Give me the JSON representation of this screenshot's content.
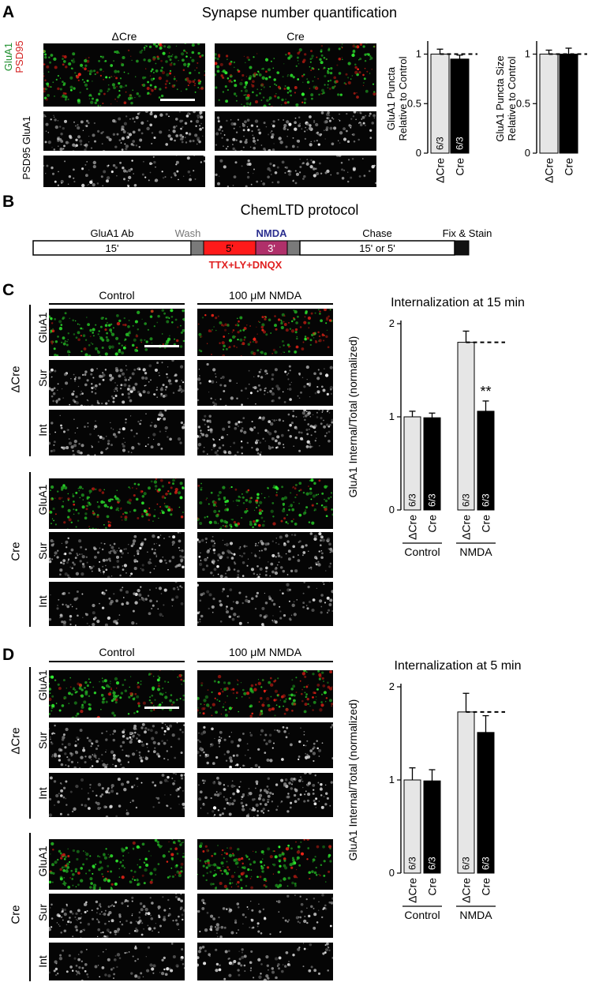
{
  "panel_letters": [
    "A",
    "B",
    "C",
    "D"
  ],
  "panelA": {
    "title": "Synapse number quantification",
    "col_labels": [
      "ΔCre",
      "Cre"
    ],
    "row_labels": [
      "GluA1",
      "PSD95",
      "GluA1",
      "PSD95"
    ],
    "row_colors": [
      "#1e8f2e",
      "#d42020"
    ]
  },
  "panelB": {
    "title": "ChemLTD protocol",
    "segments": [
      {
        "label": "GluA1 Ab",
        "time": "15'",
        "color": "#ffffff"
      },
      {
        "label": "Wash",
        "time": "",
        "color": "#7a7a7a"
      },
      {
        "label": "",
        "time": "5'",
        "color": "#ff1a1a"
      },
      {
        "label": "NMDA",
        "time": "3'",
        "color": "#c0306a"
      },
      {
        "label": "",
        "time": "",
        "color": "#7a7a7a"
      },
      {
        "label": "Chase",
        "time": "15' or 5'",
        "color": "#ffffff"
      },
      {
        "label": "Fix & Stain",
        "time": "",
        "color": "#111111"
      }
    ],
    "drug_label": "TTX+LY+DNQX",
    "nmda_color": "#2b2f8f",
    "drug_color": "#e02020",
    "wash_color": "#777777"
  },
  "panelC": {
    "col_labels": [
      "Control",
      "100 μM NMDA"
    ],
    "group_labels": [
      "ΔCre",
      "Cre"
    ],
    "row_labels": [
      "GluA1",
      "Sur",
      "Int"
    ]
  },
  "panelD": {
    "col_labels": [
      "Control",
      "100 μM NMDA"
    ],
    "group_labels": [
      "ΔCre",
      "Cre"
    ],
    "row_labels": [
      "GluA1",
      "Sur",
      "Int"
    ]
  },
  "chart_data": [
    {
      "type": "bar",
      "id": "A-left",
      "ylabel": "GluA1 Puncta\nRelative to Control",
      "categories": [
        "ΔCre",
        "Cre"
      ],
      "values": [
        1.0,
        0.95
      ],
      "errors": [
        0.05,
        0.04
      ],
      "n_labels": [
        "6/3",
        "6/3"
      ],
      "bar_colors": [
        "#e6e6e6",
        "#000000"
      ],
      "yticks": [
        "0",
        "0.5",
        "1"
      ],
      "ylim": [
        0,
        1.1
      ],
      "reference_line": 1.0
    },
    {
      "type": "bar",
      "id": "A-right",
      "ylabel": "GluA1 Puncta Size\nRelative to Control",
      "categories": [
        "ΔCre",
        "Cre"
      ],
      "values": [
        1.0,
        1.0
      ],
      "errors": [
        0.04,
        0.06
      ],
      "n_labels": [
        "",
        ""
      ],
      "bar_colors": [
        "#e6e6e6",
        "#000000"
      ],
      "yticks": [
        "0",
        "0.5",
        "1"
      ],
      "ylim": [
        0,
        1.1
      ],
      "reference_line": 1.0
    },
    {
      "type": "bar",
      "id": "C",
      "title": "Internalization at 15 min",
      "ylabel": "GluA1 Internal/Total (normalized)",
      "categories": [
        "ΔCre",
        "Cre",
        "ΔCre",
        "Cre"
      ],
      "groups": [
        "Control",
        "NMDA"
      ],
      "values": [
        1.0,
        0.99,
        1.8,
        1.06
      ],
      "errors": [
        0.06,
        0.05,
        0.12,
        0.11
      ],
      "n_labels": [
        "6/3",
        "6/3",
        "6/3",
        "6/3"
      ],
      "bar_colors": [
        "#e6e6e6",
        "#000000",
        "#e6e6e6",
        "#000000"
      ],
      "yticks": [
        "0",
        "1",
        "2"
      ],
      "ylim": [
        0,
        2
      ],
      "reference_line": 1.8,
      "significance": "**"
    },
    {
      "type": "bar",
      "id": "D",
      "title": "Internalization at 5 min",
      "ylabel": "GluA1 Internal/Total (normalized)",
      "categories": [
        "ΔCre",
        "Cre",
        "ΔCre",
        "Cre"
      ],
      "groups": [
        "Control",
        "NMDA"
      ],
      "values": [
        1.0,
        0.99,
        1.73,
        1.51
      ],
      "errors": [
        0.13,
        0.12,
        0.2,
        0.18
      ],
      "n_labels": [
        "6/3",
        "6/3",
        "6/3",
        "6/3"
      ],
      "bar_colors": [
        "#e6e6e6",
        "#000000",
        "#e6e6e6",
        "#000000"
      ],
      "yticks": [
        "0",
        "1",
        "2"
      ],
      "ylim": [
        0,
        2
      ],
      "reference_line": 1.73
    }
  ]
}
